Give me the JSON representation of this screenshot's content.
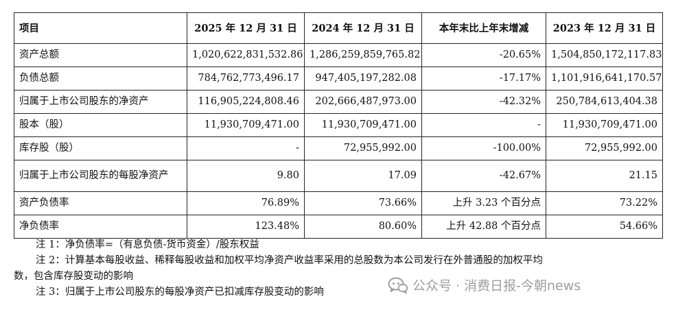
{
  "table": {
    "headers": [
      "项目",
      "2025 年 12 月 31 日",
      "2024 年 12 月 31 日",
      "本年末比上年末增减",
      "2023 年 12 月 31 日"
    ],
    "rows": [
      [
        "资产总额",
        "1,020,622,831,532.86",
        "1,286,259,859,765.82",
        "-20.65%",
        "1,504,850,172,117.83"
      ],
      [
        "负债总额",
        "784,762,773,496.17",
        "947,405,197,282.08",
        "-17.17%",
        "1,101,916,641,170.57"
      ],
      [
        "归属于上市公司股东的净资产",
        "116,905,224,808.46",
        "202,666,487,973.00",
        "-42.32%",
        "250,784,613,404.38"
      ],
      [
        "股本（股）",
        "11,930,709,471.00",
        "11,930,709,471.00",
        "-",
        "11,930,709,471.00"
      ],
      [
        "库存股（股）",
        "-",
        "72,955,992.00",
        "-100.00%",
        "72,955,992.00"
      ],
      [
        "归属于上市公司股东的每股净资产",
        "9.80",
        "17.09",
        "-42.67%",
        "21.15"
      ],
      [
        "资产负债率",
        "76.89%",
        "73.66%",
        "上升 3.23 个百分点",
        "73.22%"
      ],
      [
        "净负债率",
        "123.48%",
        "80.60%",
        "上升 42.88 个百分点",
        "54.66%"
      ]
    ]
  },
  "notes": {
    "note1": "注 1：净负债率=（有息负债-货币资金）/股东权益",
    "note2_line1": "注 2：计算基本每股收益、稀释每股收益和加权平均净资产收益率采用的总股数为本公司发行在外普通股的加权平均",
    "note2_line2": "数，包含库存股变动的影响",
    "note3": "注 3：归属于上市公司股东的每股净资产已扣减库存股变动的影响"
  },
  "watermark": {
    "text": "公众号 · 消费日报-今朝news",
    "icon": "wechat-official-account-icon"
  }
}
